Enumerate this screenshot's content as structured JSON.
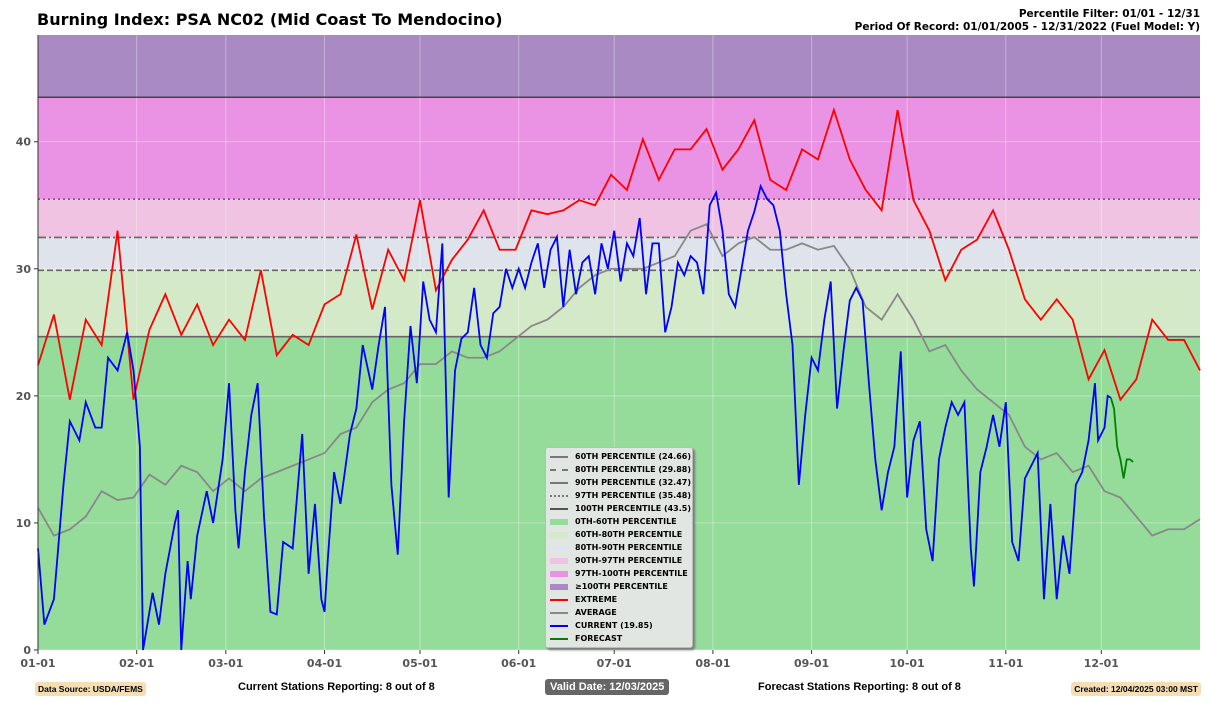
{
  "header": {
    "title": "Burning Index: PSA NC02 (Mid Coast To Mendocino)",
    "filter": "Percentile Filter: 01/01 - 12/31",
    "period": "Period Of Record: 01/01/2005 - 12/31/2022 (Fuel Model: Y)"
  },
  "footer": {
    "source": "Data Source: USDA/FEMS",
    "current_stations": "Current Stations Reporting: 8 out of 8",
    "valid_date": "Valid Date: 12/03/2025",
    "forecast_stations": "Forecast Stations Reporting: 8 out of 8",
    "created": "Created: 12/04/2025 03:00 MST"
  },
  "legend": [
    "60TH PERCENTILE (24.66)",
    "80TH PERCENTILE (29.88)",
    "90TH PERCENTILE (32.47)",
    "97TH PERCENTILE (35.48)",
    "100TH PERCENTILE (43.5)",
    "0TH-60TH PERCENTILE",
    "60TH-80TH PERCENTILE",
    "80TH-90TH PERCENTILE",
    "90TH-97TH PERCENTILE",
    "97TH-100TH PERCENTILE",
    "≥100TH PERCENTILE",
    "EXTREME",
    "AVERAGE",
    "CURRENT (19.85)",
    "FORECAST"
  ],
  "chart_data": {
    "type": "line",
    "title": "Burning Index: PSA NC02 (Mid Coast To Mendocino)",
    "xlabel": "",
    "ylabel": "",
    "ylim": [
      0,
      48.4
    ],
    "xlim": [
      0,
      365
    ],
    "yticks": [
      0,
      10,
      20,
      30,
      40
    ],
    "xticks": [
      {
        "day": 0,
        "label": "01-01"
      },
      {
        "day": 31,
        "label": "02-01"
      },
      {
        "day": 59,
        "label": "03-01"
      },
      {
        "day": 90,
        "label": "04-01"
      },
      {
        "day": 120,
        "label": "05-01"
      },
      {
        "day": 151,
        "label": "06-01"
      },
      {
        "day": 181,
        "label": "07-01"
      },
      {
        "day": 212,
        "label": "08-01"
      },
      {
        "day": 243,
        "label": "09-01"
      },
      {
        "day": 273,
        "label": "10-01"
      },
      {
        "day": 304,
        "label": "11-01"
      },
      {
        "day": 334,
        "label": "12-01"
      }
    ],
    "percentiles": [
      {
        "name": "60th",
        "value": 24.66,
        "style": "solid"
      },
      {
        "name": "80th",
        "value": 29.88,
        "style": "dashed"
      },
      {
        "name": "90th",
        "value": 32.47,
        "style": "dashdot"
      },
      {
        "name": "97th",
        "value": 35.48,
        "style": "dotted"
      },
      {
        "name": "100th",
        "value": 43.5,
        "style": "solid"
      }
    ],
    "bands": [
      {
        "from": 0,
        "to": 24.66,
        "color": "#95dc9b"
      },
      {
        "from": 24.66,
        "to": 29.88,
        "color": "#d4e9c7"
      },
      {
        "from": 29.88,
        "to": 32.47,
        "color": "#dfe3ec"
      },
      {
        "from": 32.47,
        "to": 35.48,
        "color": "#efc3e1"
      },
      {
        "from": 35.48,
        "to": 43.5,
        "color": "#ea92e3"
      },
      {
        "from": 43.5,
        "to": 48.4,
        "color": "#a98ac3"
      }
    ],
    "series": [
      {
        "name": "Extreme",
        "color": "#ff0000",
        "x": [
          0,
          5,
          10,
          15,
          20,
          25,
          30,
          35,
          40,
          45,
          50,
          55,
          60,
          65,
          70,
          75,
          80,
          85,
          90,
          95,
          100,
          105,
          110,
          115,
          120,
          125,
          130,
          135,
          140,
          145,
          150,
          155,
          160,
          165,
          170,
          175,
          180,
          185,
          190,
          195,
          200,
          205,
          210,
          215,
          220,
          225,
          230,
          235,
          240,
          245,
          250,
          255,
          260,
          265,
          270,
          275,
          280,
          285,
          290,
          295,
          300,
          305,
          310,
          315,
          320,
          325,
          330,
          335,
          340,
          345,
          350,
          355,
          360,
          365
        ],
        "y": [
          22.4,
          26.4,
          19.7,
          26,
          24,
          33,
          19.7,
          25.2,
          28,
          24.8,
          27.2,
          24,
          26,
          24.4,
          29.9,
          23.2,
          24.8,
          24,
          27.2,
          28,
          32.7,
          26.8,
          31.5,
          29.1,
          35.4,
          28.3,
          30.7,
          32.3,
          34.6,
          31.5,
          31.5,
          34.6,
          34.3,
          34.6,
          35.4,
          35,
          37.4,
          36.2,
          40.2,
          37,
          39.4,
          39.4,
          41,
          37.8,
          39.4,
          41.7,
          37,
          36.2,
          39.4,
          38.6,
          42.5,
          38.6,
          36.2,
          34.6,
          42.5,
          35.4,
          33,
          29.1,
          31.5,
          32.3,
          34.6,
          31.5,
          27.6,
          26,
          27.6,
          26,
          21.3,
          23.6,
          19.7,
          21.3,
          26,
          24.4,
          24.4,
          22
        ]
      },
      {
        "name": "Average",
        "color": "#888888",
        "x": [
          0,
          5,
          10,
          15,
          20,
          25,
          30,
          35,
          40,
          45,
          50,
          55,
          60,
          65,
          70,
          75,
          80,
          85,
          90,
          95,
          100,
          105,
          110,
          115,
          120,
          125,
          130,
          135,
          140,
          145,
          150,
          155,
          160,
          165,
          170,
          175,
          180,
          185,
          190,
          195,
          200,
          205,
          210,
          215,
          220,
          225,
          230,
          235,
          240,
          245,
          250,
          255,
          260,
          265,
          270,
          275,
          280,
          285,
          290,
          295,
          300,
          305,
          310,
          315,
          320,
          325,
          330,
          335,
          340,
          345,
          350,
          355,
          360,
          365
        ],
        "y": [
          11.2,
          9,
          9.5,
          10.5,
          12.5,
          11.8,
          12,
          13.8,
          13,
          14.5,
          14,
          12.5,
          13.5,
          12.5,
          13.5,
          14,
          14.5,
          15,
          15.5,
          17,
          17.5,
          19.5,
          20.5,
          21,
          22.5,
          22.5,
          23.5,
          23,
          23,
          23.5,
          24.5,
          25.5,
          26,
          27,
          28.5,
          29.5,
          30,
          30,
          30,
          30.5,
          31,
          33,
          33.5,
          31,
          32,
          32.5,
          31.5,
          31.5,
          32,
          31.5,
          31.8,
          30,
          27,
          26,
          28,
          26,
          23.5,
          24,
          22,
          20.5,
          19.5,
          18.5,
          16,
          15,
          15.5,
          14,
          14.5,
          12.5,
          12,
          10.5,
          9,
          9.5,
          9.5,
          10.3
        ]
      },
      {
        "name": "Current",
        "value": 19.85,
        "color": "#0000ff",
        "x": [
          0,
          2,
          5,
          8,
          10,
          13,
          15,
          18,
          20,
          22,
          25,
          28,
          30,
          32,
          33,
          36,
          38,
          40,
          43,
          44,
          45,
          47,
          48,
          50,
          53,
          55,
          58,
          60,
          62,
          63,
          65,
          67,
          69,
          71,
          73,
          75,
          77,
          80,
          83,
          85,
          87,
          89,
          90,
          91,
          93,
          95,
          98,
          100,
          102,
          105,
          107,
          109,
          111,
          113,
          115,
          117,
          119,
          121,
          123,
          125,
          127,
          129,
          131,
          133,
          135,
          137,
          139,
          141,
          143,
          145,
          147,
          149,
          151,
          153,
          155,
          157,
          159,
          161,
          163,
          165,
          167,
          169,
          171,
          173,
          175,
          177,
          179,
          181,
          183,
          185,
          187,
          189,
          191,
          193,
          195,
          197,
          199,
          201,
          203,
          205,
          207,
          209,
          211,
          213,
          215,
          217,
          219,
          221,
          223,
          225,
          227,
          229,
          231,
          233,
          235,
          237,
          239,
          241,
          243,
          245,
          247,
          249,
          251,
          253,
          255,
          257,
          259,
          261,
          263,
          265,
          267,
          269,
          271,
          273,
          275,
          277,
          279,
          281,
          283,
          285,
          287,
          289,
          291,
          293,
          294,
          296,
          298,
          300,
          302,
          304,
          306,
          308,
          310,
          312,
          314,
          316,
          318,
          320,
          322,
          324,
          326,
          328,
          330,
          332,
          333,
          335,
          336,
          337
        ],
        "y": [
          8,
          2,
          4,
          13,
          18,
          16.5,
          19.5,
          17.5,
          17.5,
          23,
          22,
          25,
          22,
          16,
          0,
          4.5,
          2,
          6,
          10,
          11,
          0,
          7,
          4,
          9,
          12.5,
          10,
          15,
          21,
          11,
          8,
          14,
          18.5,
          21,
          10.5,
          3,
          2.8,
          8.5,
          8,
          17,
          6,
          11.5,
          4,
          3,
          7,
          14,
          11.5,
          17,
          19,
          24,
          20.5,
          24,
          27,
          13,
          7.5,
          18,
          25.5,
          21,
          29,
          26,
          25,
          32,
          12,
          22,
          24.5,
          25,
          28.5,
          24,
          23,
          26.5,
          27,
          30,
          28.5,
          30,
          28.5,
          30.5,
          32,
          28.5,
          31.5,
          32.5,
          27,
          31.5,
          28,
          30.5,
          31,
          28,
          32,
          30,
          33,
          29,
          32,
          31,
          34,
          28,
          32,
          32,
          25,
          27,
          30.5,
          29.5,
          31,
          30.5,
          28,
          35,
          36,
          33,
          28,
          27,
          30,
          33,
          34.5,
          36.5,
          35.5,
          35,
          33,
          28,
          24,
          13,
          18.5,
          23,
          22,
          26,
          29,
          19,
          23.5,
          27.5,
          28.5,
          27.5,
          21,
          15,
          11,
          14,
          16,
          23.5,
          12,
          16.5,
          18,
          9.5,
          7,
          15,
          17.5,
          19.5,
          18.5,
          19.5,
          8,
          5,
          14,
          16,
          18.5,
          16,
          19.5,
          8.5,
          7,
          13.5,
          14.5,
          15.5,
          4,
          11.5,
          4,
          9,
          6,
          13,
          14,
          16.5,
          21,
          16.5,
          17.5,
          20,
          19.85
        ]
      },
      {
        "name": "Forecast",
        "color": "#008000",
        "x": [
          337,
          338,
          339,
          340,
          341,
          342,
          343,
          344
        ],
        "y": [
          19.85,
          19,
          16,
          15,
          13.5,
          15,
          15,
          14.8
        ]
      }
    ]
  }
}
